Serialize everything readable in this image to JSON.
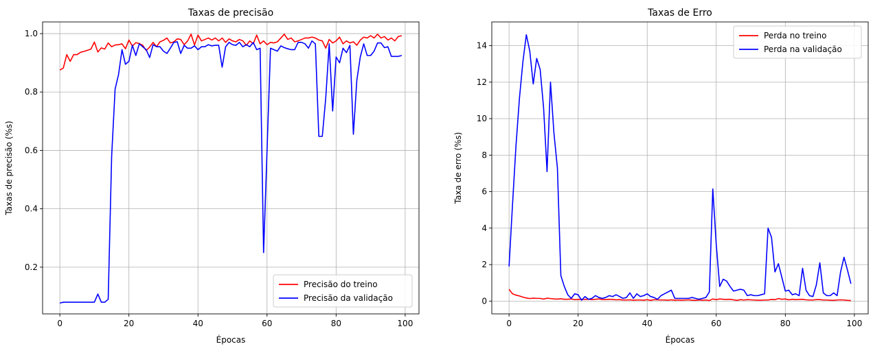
{
  "chart_data": [
    {
      "type": "line",
      "title": "Taxas de precisão",
      "xlabel": "Épocas",
      "ylabel": "Taxas de precisão (%s)",
      "xlim": [
        -5,
        104
      ],
      "ylim": [
        0.04,
        1.04
      ],
      "xticks": [
        0,
        20,
        40,
        60,
        80,
        100
      ],
      "yticks": [
        0.2,
        0.4,
        0.6,
        0.8,
        1.0
      ],
      "grid": true,
      "legend_position": "lower-right",
      "series": [
        {
          "name": "Precisão do treino",
          "color": "#ff0000",
          "x": [
            0,
            1,
            2,
            3,
            4,
            5,
            6,
            7,
            8,
            9,
            10,
            11,
            12,
            13,
            14,
            15,
            16,
            17,
            18,
            19,
            20,
            21,
            22,
            23,
            24,
            25,
            26,
            27,
            28,
            29,
            30,
            31,
            32,
            33,
            34,
            35,
            36,
            37,
            38,
            39,
            40,
            41,
            42,
            43,
            44,
            45,
            46,
            47,
            48,
            49,
            50,
            51,
            52,
            53,
            54,
            55,
            56,
            57,
            58,
            59,
            60,
            61,
            62,
            63,
            64,
            65,
            66,
            67,
            68,
            69,
            70,
            71,
            72,
            73,
            74,
            75,
            76,
            77,
            78,
            79,
            80,
            81,
            82,
            83,
            84,
            85,
            86,
            87,
            88,
            89,
            90,
            91,
            92,
            93,
            94,
            95,
            96,
            97,
            98,
            99
          ],
          "values": [
            0.875,
            0.882,
            0.928,
            0.905,
            0.928,
            0.928,
            0.936,
            0.939,
            0.943,
            0.947,
            0.971,
            0.937,
            0.951,
            0.947,
            0.968,
            0.955,
            0.961,
            0.962,
            0.965,
            0.948,
            0.978,
            0.957,
            0.969,
            0.966,
            0.96,
            0.942,
            0.954,
            0.97,
            0.955,
            0.972,
            0.977,
            0.985,
            0.968,
            0.972,
            0.982,
            0.98,
            0.962,
            0.975,
            0.998,
            0.961,
            0.995,
            0.975,
            0.98,
            0.985,
            0.978,
            0.985,
            0.975,
            0.985,
            0.97,
            0.982,
            0.975,
            0.972,
            0.98,
            0.975,
            0.96,
            0.975,
            0.965,
            0.995,
            0.965,
            0.975,
            0.962,
            0.97,
            0.968,
            0.972,
            0.985,
            0.998,
            0.98,
            0.985,
            0.972,
            0.975,
            0.98,
            0.985,
            0.985,
            0.988,
            0.985,
            0.978,
            0.975,
            0.95,
            0.98,
            0.968,
            0.975,
            0.988,
            0.965,
            0.975,
            0.968,
            0.972,
            0.96,
            0.978,
            0.988,
            0.985,
            0.993,
            0.985,
            0.998,
            0.985,
            0.99,
            0.978,
            0.985,
            0.975,
            0.99,
            0.993
          ]
        },
        {
          "name": "Precisão da validação",
          "color": "#0000ff",
          "x": [
            0,
            1,
            2,
            3,
            4,
            5,
            6,
            7,
            8,
            9,
            10,
            11,
            12,
            13,
            14,
            15,
            16,
            17,
            18,
            19,
            20,
            21,
            22,
            23,
            24,
            25,
            26,
            27,
            28,
            29,
            30,
            31,
            32,
            33,
            34,
            35,
            36,
            37,
            38,
            39,
            40,
            41,
            42,
            43,
            44,
            45,
            46,
            47,
            48,
            49,
            50,
            51,
            52,
            53,
            54,
            55,
            56,
            57,
            58,
            59,
            60,
            61,
            62,
            63,
            64,
            65,
            66,
            67,
            68,
            69,
            70,
            71,
            72,
            73,
            74,
            75,
            76,
            77,
            78,
            79,
            80,
            81,
            82,
            83,
            84,
            85,
            86,
            87,
            88,
            89,
            90,
            91,
            92,
            93,
            94,
            95,
            96,
            97,
            98,
            99
          ],
          "values": [
            0.077,
            0.08,
            0.08,
            0.08,
            0.08,
            0.08,
            0.08,
            0.08,
            0.08,
            0.08,
            0.08,
            0.108,
            0.08,
            0.08,
            0.09,
            0.58,
            0.81,
            0.86,
            0.945,
            0.895,
            0.905,
            0.96,
            0.925,
            0.965,
            0.955,
            0.945,
            0.918,
            0.962,
            0.955,
            0.955,
            0.94,
            0.932,
            0.95,
            0.97,
            0.972,
            0.932,
            0.96,
            0.95,
            0.95,
            0.958,
            0.945,
            0.955,
            0.955,
            0.962,
            0.958,
            0.96,
            0.96,
            0.885,
            0.955,
            0.97,
            0.962,
            0.96,
            0.97,
            0.955,
            0.962,
            0.955,
            0.97,
            0.945,
            0.95,
            0.25,
            0.6,
            0.95,
            0.945,
            0.94,
            0.958,
            0.952,
            0.948,
            0.945,
            0.945,
            0.97,
            0.97,
            0.965,
            0.95,
            0.975,
            0.965,
            0.648,
            0.648,
            0.78,
            0.965,
            0.735,
            0.92,
            0.9,
            0.95,
            0.935,
            0.96,
            0.655,
            0.84,
            0.92,
            0.965,
            0.925,
            0.925,
            0.94,
            0.968,
            0.968,
            0.952,
            0.955,
            0.922,
            0.922,
            0.922,
            0.925
          ]
        }
      ]
    },
    {
      "type": "line",
      "title": "Taxas de Erro",
      "xlabel": "Épocas",
      "ylabel": "Taxa de erro (%s)",
      "xlim": [
        -5,
        104
      ],
      "ylim": [
        -0.7,
        15.3
      ],
      "xticks": [
        0,
        20,
        40,
        60,
        80,
        100
      ],
      "yticks": [
        0,
        2,
        4,
        6,
        8,
        10,
        12,
        14
      ],
      "grid": true,
      "legend_position": "upper-right",
      "series": [
        {
          "name": "Perda no treino",
          "color": "#ff0000",
          "x": [
            0,
            1,
            2,
            3,
            4,
            5,
            6,
            7,
            8,
            9,
            10,
            11,
            12,
            13,
            14,
            15,
            16,
            17,
            18,
            19,
            20,
            21,
            22,
            23,
            24,
            25,
            26,
            27,
            28,
            29,
            30,
            31,
            32,
            33,
            34,
            35,
            36,
            37,
            38,
            39,
            40,
            41,
            42,
            43,
            44,
            45,
            46,
            47,
            48,
            49,
            50,
            51,
            52,
            53,
            54,
            55,
            56,
            57,
            58,
            59,
            60,
            61,
            62,
            63,
            64,
            65,
            66,
            67,
            68,
            69,
            70,
            71,
            72,
            73,
            74,
            75,
            76,
            77,
            78,
            79,
            80,
            81,
            82,
            83,
            84,
            85,
            86,
            87,
            88,
            89,
            90,
            91,
            92,
            93,
            94,
            95,
            96,
            97,
            98,
            99
          ],
          "values": [
            0.65,
            0.4,
            0.33,
            0.28,
            0.22,
            0.17,
            0.14,
            0.16,
            0.15,
            0.15,
            0.11,
            0.16,
            0.14,
            0.12,
            0.11,
            0.13,
            0.1,
            0.1,
            0.12,
            0.08,
            0.09,
            0.1,
            0.09,
            0.1,
            0.08,
            0.1,
            0.12,
            0.09,
            0.08,
            0.1,
            0.09,
            0.07,
            0.08,
            0.06,
            0.06,
            0.07,
            0.05,
            0.06,
            0.06,
            0.05,
            0.08,
            0.04,
            0.08,
            0.07,
            0.06,
            0.06,
            0.05,
            0.07,
            0.05,
            0.06,
            0.05,
            0.06,
            0.07,
            0.05,
            0.04,
            0.06,
            0.05,
            0.06,
            0.03,
            0.12,
            0.08,
            0.12,
            0.1,
            0.09,
            0.1,
            0.07,
            0.04,
            0.08,
            0.06,
            0.08,
            0.07,
            0.06,
            0.05,
            0.05,
            0.06,
            0.06,
            0.09,
            0.08,
            0.14,
            0.1,
            0.12,
            0.07,
            0.1,
            0.08,
            0.09,
            0.1,
            0.07,
            0.06,
            0.06,
            0.08,
            0.08,
            0.06,
            0.06,
            0.05,
            0.04,
            0.06,
            0.07,
            0.06,
            0.04,
            0.03
          ]
        },
        {
          "name": "Perda na validação",
          "color": "#0000ff",
          "x": [
            0,
            1,
            2,
            3,
            4,
            5,
            6,
            7,
            8,
            9,
            10,
            11,
            12,
            13,
            14,
            15,
            16,
            17,
            18,
            19,
            20,
            21,
            22,
            23,
            24,
            25,
            26,
            27,
            28,
            29,
            30,
            31,
            32,
            33,
            34,
            35,
            36,
            37,
            38,
            39,
            40,
            41,
            42,
            43,
            44,
            45,
            46,
            47,
            48,
            49,
            50,
            51,
            52,
            53,
            54,
            55,
            56,
            57,
            58,
            59,
            60,
            61,
            62,
            63,
            64,
            65,
            66,
            67,
            68,
            69,
            70,
            71,
            72,
            73,
            74,
            75,
            76,
            77,
            78,
            79,
            80,
            81,
            82,
            83,
            84,
            85,
            86,
            87,
            88,
            89,
            90,
            91,
            92,
            93,
            94,
            95,
            96,
            97,
            98,
            99
          ],
          "values": [
            1.9,
            5.3,
            8.5,
            11.1,
            13.1,
            14.6,
            13.7,
            11.9,
            13.3,
            12.7,
            10.6,
            7.1,
            12.0,
            9.2,
            7.3,
            1.4,
            0.8,
            0.35,
            0.15,
            0.4,
            0.35,
            0.05,
            0.25,
            0.1,
            0.15,
            0.3,
            0.2,
            0.15,
            0.2,
            0.3,
            0.25,
            0.35,
            0.25,
            0.15,
            0.2,
            0.45,
            0.15,
            0.4,
            0.25,
            0.3,
            0.4,
            0.25,
            0.2,
            0.1,
            0.3,
            0.4,
            0.5,
            0.6,
            0.15,
            0.15,
            0.15,
            0.15,
            0.15,
            0.2,
            0.15,
            0.1,
            0.15,
            0.2,
            0.5,
            6.15,
            3.1,
            0.8,
            1.2,
            1.1,
            0.8,
            0.55,
            0.6,
            0.65,
            0.6,
            0.3,
            0.35,
            0.3,
            0.3,
            0.35,
            0.4,
            4.0,
            3.5,
            1.6,
            2.05,
            1.3,
            0.55,
            0.6,
            0.35,
            0.4,
            0.3,
            1.8,
            0.6,
            0.3,
            0.25,
            0.9,
            2.1,
            0.45,
            0.3,
            0.3,
            0.45,
            0.3,
            1.6,
            2.4,
            1.7,
            0.95
          ]
        }
      ]
    }
  ]
}
